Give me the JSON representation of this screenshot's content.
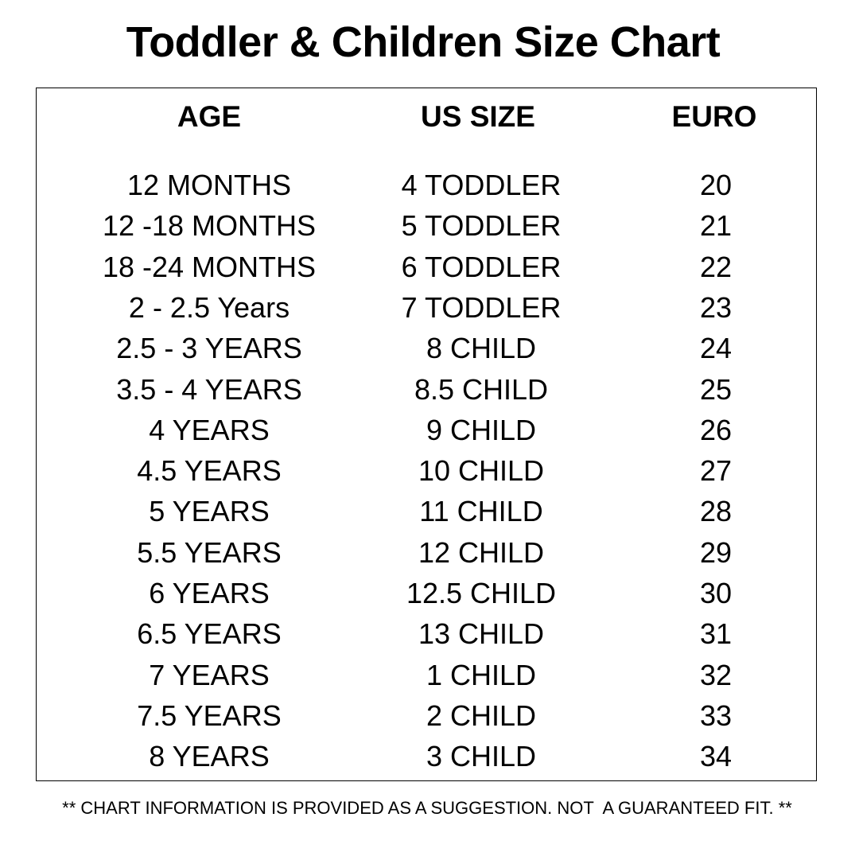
{
  "title": "Toddler & Children Size Chart",
  "columns": [
    "AGE",
    "US SIZE",
    "EURO"
  ],
  "rows": [
    [
      "12 MONTHS",
      "4 TODDLER",
      "20"
    ],
    [
      "12 -18 MONTHS",
      "5 TODDLER",
      "21"
    ],
    [
      "18 -24 MONTHS",
      "6 TODDLER",
      "22"
    ],
    [
      "2 - 2.5 Years",
      "7 TODDLER",
      "23"
    ],
    [
      "2.5 - 3 YEARS",
      "8 CHILD",
      "24"
    ],
    [
      "3.5 - 4 YEARS",
      "8.5 CHILD",
      "25"
    ],
    [
      "4 YEARS",
      "9 CHILD",
      "26"
    ],
    [
      "4.5 YEARS",
      "10 CHILD",
      "27"
    ],
    [
      "5 YEARS",
      "11 CHILD",
      "28"
    ],
    [
      "5.5 YEARS",
      "12 CHILD",
      "29"
    ],
    [
      "6 YEARS",
      "12.5 CHILD",
      "30"
    ],
    [
      "6.5 YEARS",
      "13 CHILD",
      "31"
    ],
    [
      "7 YEARS",
      "1 CHILD",
      "32"
    ],
    [
      "7.5 YEARS",
      "2 CHILD",
      "33"
    ],
    [
      "8 YEARS",
      "3 CHILD",
      "34"
    ]
  ],
  "footer": "** CHART INFORMATION IS PROVIDED AS A SUGGESTION. NOT  A GUARANTEED FIT. **"
}
